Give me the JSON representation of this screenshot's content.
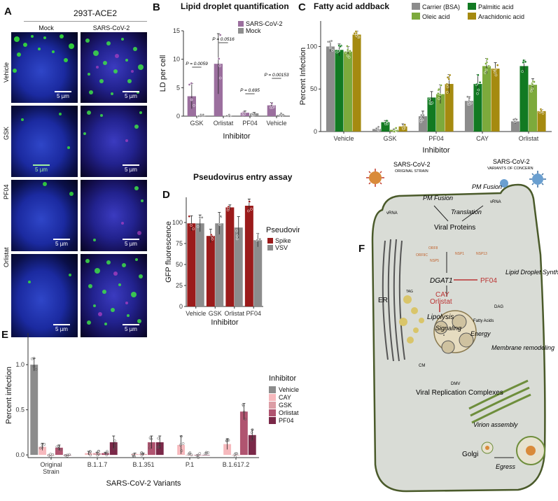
{
  "panels": {
    "A": {
      "label": "A",
      "cell_line": "293T-ACE2",
      "columns": [
        "Mock",
        "SARS-CoV-2"
      ],
      "rows": [
        "Vehicle",
        "GSK",
        "PF04",
        "Orlistat"
      ],
      "scale_bar": "5 µm"
    },
    "B": {
      "label": "B",
      "title": "Lipid droplet quantification",
      "ylabel": "LD per cell",
      "xlabel": "Inhibitor",
      "pvalues": [
        "P = 0.0059",
        "P = 0.0516",
        "P = 0.695",
        "P = 0.00153"
      ]
    },
    "C": {
      "label": "C",
      "title": "Fatty acid addback",
      "ylabel": "Percent Infection",
      "xlabel": "Inhibitor"
    },
    "D": {
      "label": "D",
      "title": "Pseudovirus entry assay",
      "ylabel": "GFP fluorescence",
      "xlabel": "Inhibitor",
      "legend_title": "Pseudovirus"
    },
    "E": {
      "label": "E",
      "ylabel": "Percent infection",
      "xlabel": "SARS-CoV-2 Variants",
      "legend_title": "Inhibitor"
    },
    "F": {
      "label": "F",
      "virus_original": "SARS-CoV-2",
      "virus_original_sub": "ORIGINAL STRAIN",
      "virus_voc": "SARS-CoV-2",
      "virus_voc_sub": "VARIANTS OF CONCERN",
      "pm_fusion": "PM\nFusion",
      "vrna": "vRNA",
      "translation": "Translation",
      "viral_proteins": "Viral\nProteins",
      "nsps": [
        "ORF8",
        "ORF9C",
        "NSP1",
        "NSP13",
        "NSP5"
      ],
      "dgat1": "DGAT1",
      "pf04": "PF04",
      "lipid_synthesis": "Lipid\nDroplet\nSynthesis",
      "er": "ER",
      "tag": "TAG",
      "cay": "CAY",
      "orlistat": "Orlistat",
      "lipolysis": "Lipolysis",
      "dag": "DAG",
      "fatty_acids": "Fatty\nAcids",
      "signaling": "Signaling",
      "energy": "Energy",
      "membrane": "Membrane\nremodeling",
      "cm": "CM",
      "dmv": "DMV",
      "vrc": "Viral\nReplication\nComplexes",
      "virion": "Virion\nassembly",
      "golgi": "Golgi",
      "egress": "Egress"
    }
  },
  "chart_data": [
    {
      "panel": "B",
      "type": "bar",
      "title": "Lipid droplet quantification",
      "xlabel": "Inhibitor",
      "ylabel": "LD per cell",
      "categories": [
        "GSK",
        "Orlistat",
        "PF04",
        "Vehicle"
      ],
      "ylim": [
        0,
        15
      ],
      "yticks": [
        0,
        5,
        10,
        15
      ],
      "legend_position": "top-right",
      "series": [
        {
          "name": "SARS-CoV-2",
          "color": "#9b6f9e",
          "values": [
            3.5,
            9.2,
            0.6,
            1.9
          ],
          "errors": [
            2.2,
            5.3,
            0.3,
            0.5
          ]
        },
        {
          "name": "Mock",
          "color": "#8e8e8e",
          "values": [
            0.05,
            0.05,
            0.5,
            0.2
          ],
          "errors": [
            0.05,
            0.05,
            0.15,
            0.1
          ]
        }
      ],
      "annotations": [
        "P = 0.0059",
        "P = 0.0516",
        "P = 0.695",
        "P = 0.00153"
      ]
    },
    {
      "panel": "C",
      "type": "bar",
      "title": "Fatty acid addback",
      "xlabel": "Inhibitor",
      "ylabel": "Percent Infection",
      "categories": [
        "Vehicle",
        "GSK",
        "PF04",
        "CAY",
        "Orlistat"
      ],
      "ylim": [
        0,
        130
      ],
      "yticks": [
        0,
        50,
        100
      ],
      "legend_position": "top",
      "series": [
        {
          "name": "Carrier (BSA)",
          "color": "#8c8c8c",
          "values": [
            100,
            3,
            18,
            36,
            12
          ],
          "errors": [
            6,
            1,
            6,
            5,
            3
          ]
        },
        {
          "name": "Palmitic acid",
          "color": "#127a22",
          "values": [
            96,
            11,
            40,
            56,
            77
          ],
          "errors": [
            7,
            2,
            7,
            11,
            7
          ]
        },
        {
          "name": "Oleic acid",
          "color": "#7daa3c",
          "values": [
            94,
            2,
            44,
            77,
            55
          ],
          "errors": [
            6,
            1,
            11,
            9,
            7
          ]
        },
        {
          "name": "Arachidonic acid",
          "color": "#a58a10",
          "values": [
            114,
            6,
            56,
            74,
            24
          ],
          "errors": [
            4,
            3,
            11,
            7,
            2
          ]
        }
      ]
    },
    {
      "panel": "D",
      "type": "bar",
      "title": "Pseudovirus entry assay",
      "xlabel": "Inhibitor",
      "ylabel": "GFP fluorescence",
      "categories": [
        "Vehicle",
        "GSK",
        "Orlistat",
        "PF04"
      ],
      "ylim": [
        0,
        130
      ],
      "yticks": [
        0,
        25,
        50,
        75,
        100
      ],
      "legend_position": "right",
      "legend_title": "Pseudovirus",
      "series": [
        {
          "name": "Spike",
          "color": "#9b1b1b",
          "values": [
            99,
            84,
            118,
            120
          ],
          "errors": [
            9,
            8,
            3,
            8
          ]
        },
        {
          "name": "VSV",
          "color": "#8c8c8c",
          "values": [
            99,
            99,
            94,
            79
          ],
          "errors": [
            10,
            13,
            13,
            8
          ]
        }
      ]
    },
    {
      "panel": "E",
      "type": "bar",
      "xlabel": "SARS-CoV-2 Variants",
      "ylabel": "Percent infection",
      "categories": [
        "Original Strain",
        "B.1.1.7",
        "B.1.351",
        "P.1",
        "B.1.617.2"
      ],
      "ylim": [
        -0.03,
        1.35
      ],
      "yticks": [
        0.0,
        0.5,
        1.0
      ],
      "legend_position": "right",
      "legend_title": "Inhibitor",
      "series": [
        {
          "name": "Vehicle",
          "color": "#8c8c8c",
          "values": [
            1.0,
            null,
            null,
            null,
            null
          ],
          "errors": [
            0.07,
            0,
            0,
            0,
            0
          ]
        },
        {
          "name": "CAY",
          "color": "#f6b9bd",
          "values": [
            0.09,
            0.02,
            0.01,
            0.11,
            0.12
          ],
          "errors": [
            0.04,
            0.02,
            0.01,
            0.1,
            0.06
          ]
        },
        {
          "name": "GSK",
          "color": "#dc9da5",
          "values": [
            0.0,
            0.02,
            0.01,
            0.0,
            0.0
          ],
          "errors": [
            0,
            0.01,
            0.01,
            0,
            0
          ]
        },
        {
          "name": "Orlistat",
          "color": "#b05470",
          "values": [
            0.08,
            0.02,
            0.14,
            0.0,
            0.48
          ],
          "errors": [
            0.03,
            0.01,
            0.07,
            0,
            0.09
          ]
        },
        {
          "name": "PF04",
          "color": "#7a2848",
          "values": [
            0.0,
            0.14,
            0.14,
            0.0,
            0.22
          ],
          "errors": [
            0,
            0.07,
            0.07,
            0,
            0.06
          ]
        }
      ]
    }
  ]
}
